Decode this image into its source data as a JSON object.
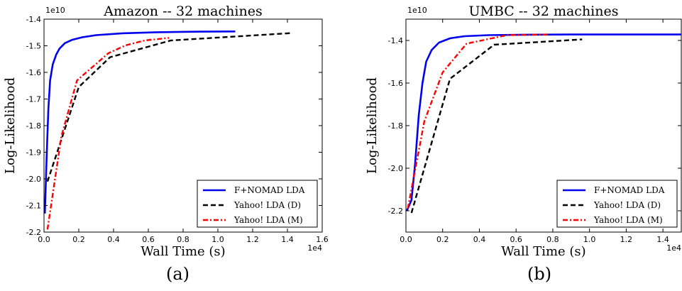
{
  "chart_data": [
    {
      "type": "line",
      "panel_label": "(a)",
      "title": "Amazon -- 32 machines",
      "xlabel": "Wall Time (s)",
      "ylabel": "Log-Likelihood",
      "x_multiplier": "1e4",
      "y_multiplier": "1e10",
      "xlim": [
        0,
        16000
      ],
      "ylim": [
        -22000000000,
        -14000000000
      ],
      "xticks": [
        0,
        2000,
        4000,
        6000,
        8000,
        10000,
        12000,
        14000,
        16000
      ],
      "xtick_labels": [
        "0.0",
        "0.2",
        "0.4",
        "0.6",
        "0.8",
        "1.0",
        "1.2",
        "1.4",
        "1.6"
      ],
      "yticks": [
        -22000000000,
        -21000000000,
        -20000000000,
        -19000000000,
        -18000000000,
        -17000000000,
        -16000000000,
        -15000000000,
        -14000000000
      ],
      "ytick_labels": [
        "-2.2",
        "-2.1",
        "-2.0",
        "-1.9",
        "-1.8",
        "-1.7",
        "-1.6",
        "-1.5",
        "-1.4"
      ],
      "legend_position": "lower-right",
      "series": [
        {
          "name": "F+NOMAD LDA",
          "color": "#0000ee",
          "style": "solid",
          "x": [
            50,
            150,
            250,
            350,
            500,
            700,
            900,
            1200,
            1600,
            2200,
            3000,
            4500,
            6500,
            9000,
            11000
          ],
          "y": [
            -21300000000,
            -19200000000,
            -17400000000,
            -16300000000,
            -15700000000,
            -15330000000,
            -15100000000,
            -14900000000,
            -14780000000,
            -14680000000,
            -14600000000,
            -14530000000,
            -14490000000,
            -14470000000,
            -14460000000
          ]
        },
        {
          "name": "Yahoo! LDA (D)",
          "color": "#000000",
          "style": "dashed",
          "x": [
            200,
            2000,
            3800,
            7300,
            14300
          ],
          "y": [
            -20100000000,
            -16550000000,
            -15430000000,
            -14800000000,
            -14520000000
          ]
        },
        {
          "name": "Yahoo! LDA (M)",
          "color": "#ff0000",
          "style": "dashdot",
          "x": [
            200,
            1000,
            1900,
            3700,
            4700,
            5800,
            7200
          ],
          "y": [
            -21900000000,
            -18400000000,
            -16300000000,
            -15280000000,
            -14980000000,
            -14800000000,
            -14700000000
          ]
        }
      ]
    },
    {
      "type": "line",
      "panel_label": "(b)",
      "title": "UMBC -- 32 machines",
      "xlabel": "Wall Time (s)",
      "ylabel": "Log-Likelihood",
      "x_multiplier": "1e4",
      "y_multiplier": "1e10",
      "xlim": [
        0,
        15000
      ],
      "ylim": [
        -23000000000,
        -13000000000
      ],
      "xticks": [
        0,
        2000,
        4000,
        6000,
        8000,
        10000,
        12000,
        14000
      ],
      "xtick_labels": [
        "0.0",
        "0.2",
        "0.4",
        "0.6",
        "0.8",
        "1.0",
        "1.2",
        "1.4"
      ],
      "yticks": [
        -22000000000,
        -20000000000,
        -18000000000,
        -16000000000,
        -14000000000
      ],
      "ytick_labels": [
        "-2.2",
        "-2.0",
        "-1.8",
        "-1.6",
        "-1.4"
      ],
      "legend_position": "lower-right",
      "series": [
        {
          "name": "F+NOMAD LDA",
          "color": "#0000ee",
          "style": "solid",
          "x": [
            50,
            300,
            500,
            700,
            900,
            1100,
            1400,
            1800,
            2400,
            3200,
            4500,
            6500,
            9000,
            12000,
            15000
          ],
          "y": [
            -22000000000,
            -21500000000,
            -19800000000,
            -17500000000,
            -16000000000,
            -15000000000,
            -14450000000,
            -14100000000,
            -13900000000,
            -13800000000,
            -13750000000,
            -13730000000,
            -13720000000,
            -13720000000,
            -13720000000
          ]
        },
        {
          "name": "Yahoo! LDA (D)",
          "color": "#000000",
          "style": "dashed",
          "x": [
            300,
            2400,
            4800,
            9600
          ],
          "y": [
            -22100000000,
            -15800000000,
            -14200000000,
            -13950000000
          ]
        },
        {
          "name": "Yahoo! LDA (M)",
          "color": "#ff0000",
          "style": "dashdot",
          "x": [
            100,
            1000,
            2000,
            3300,
            5500,
            7800
          ],
          "y": [
            -21900000000,
            -17800000000,
            -15500000000,
            -14150000000,
            -13750000000,
            -13720000000
          ]
        }
      ]
    }
  ]
}
